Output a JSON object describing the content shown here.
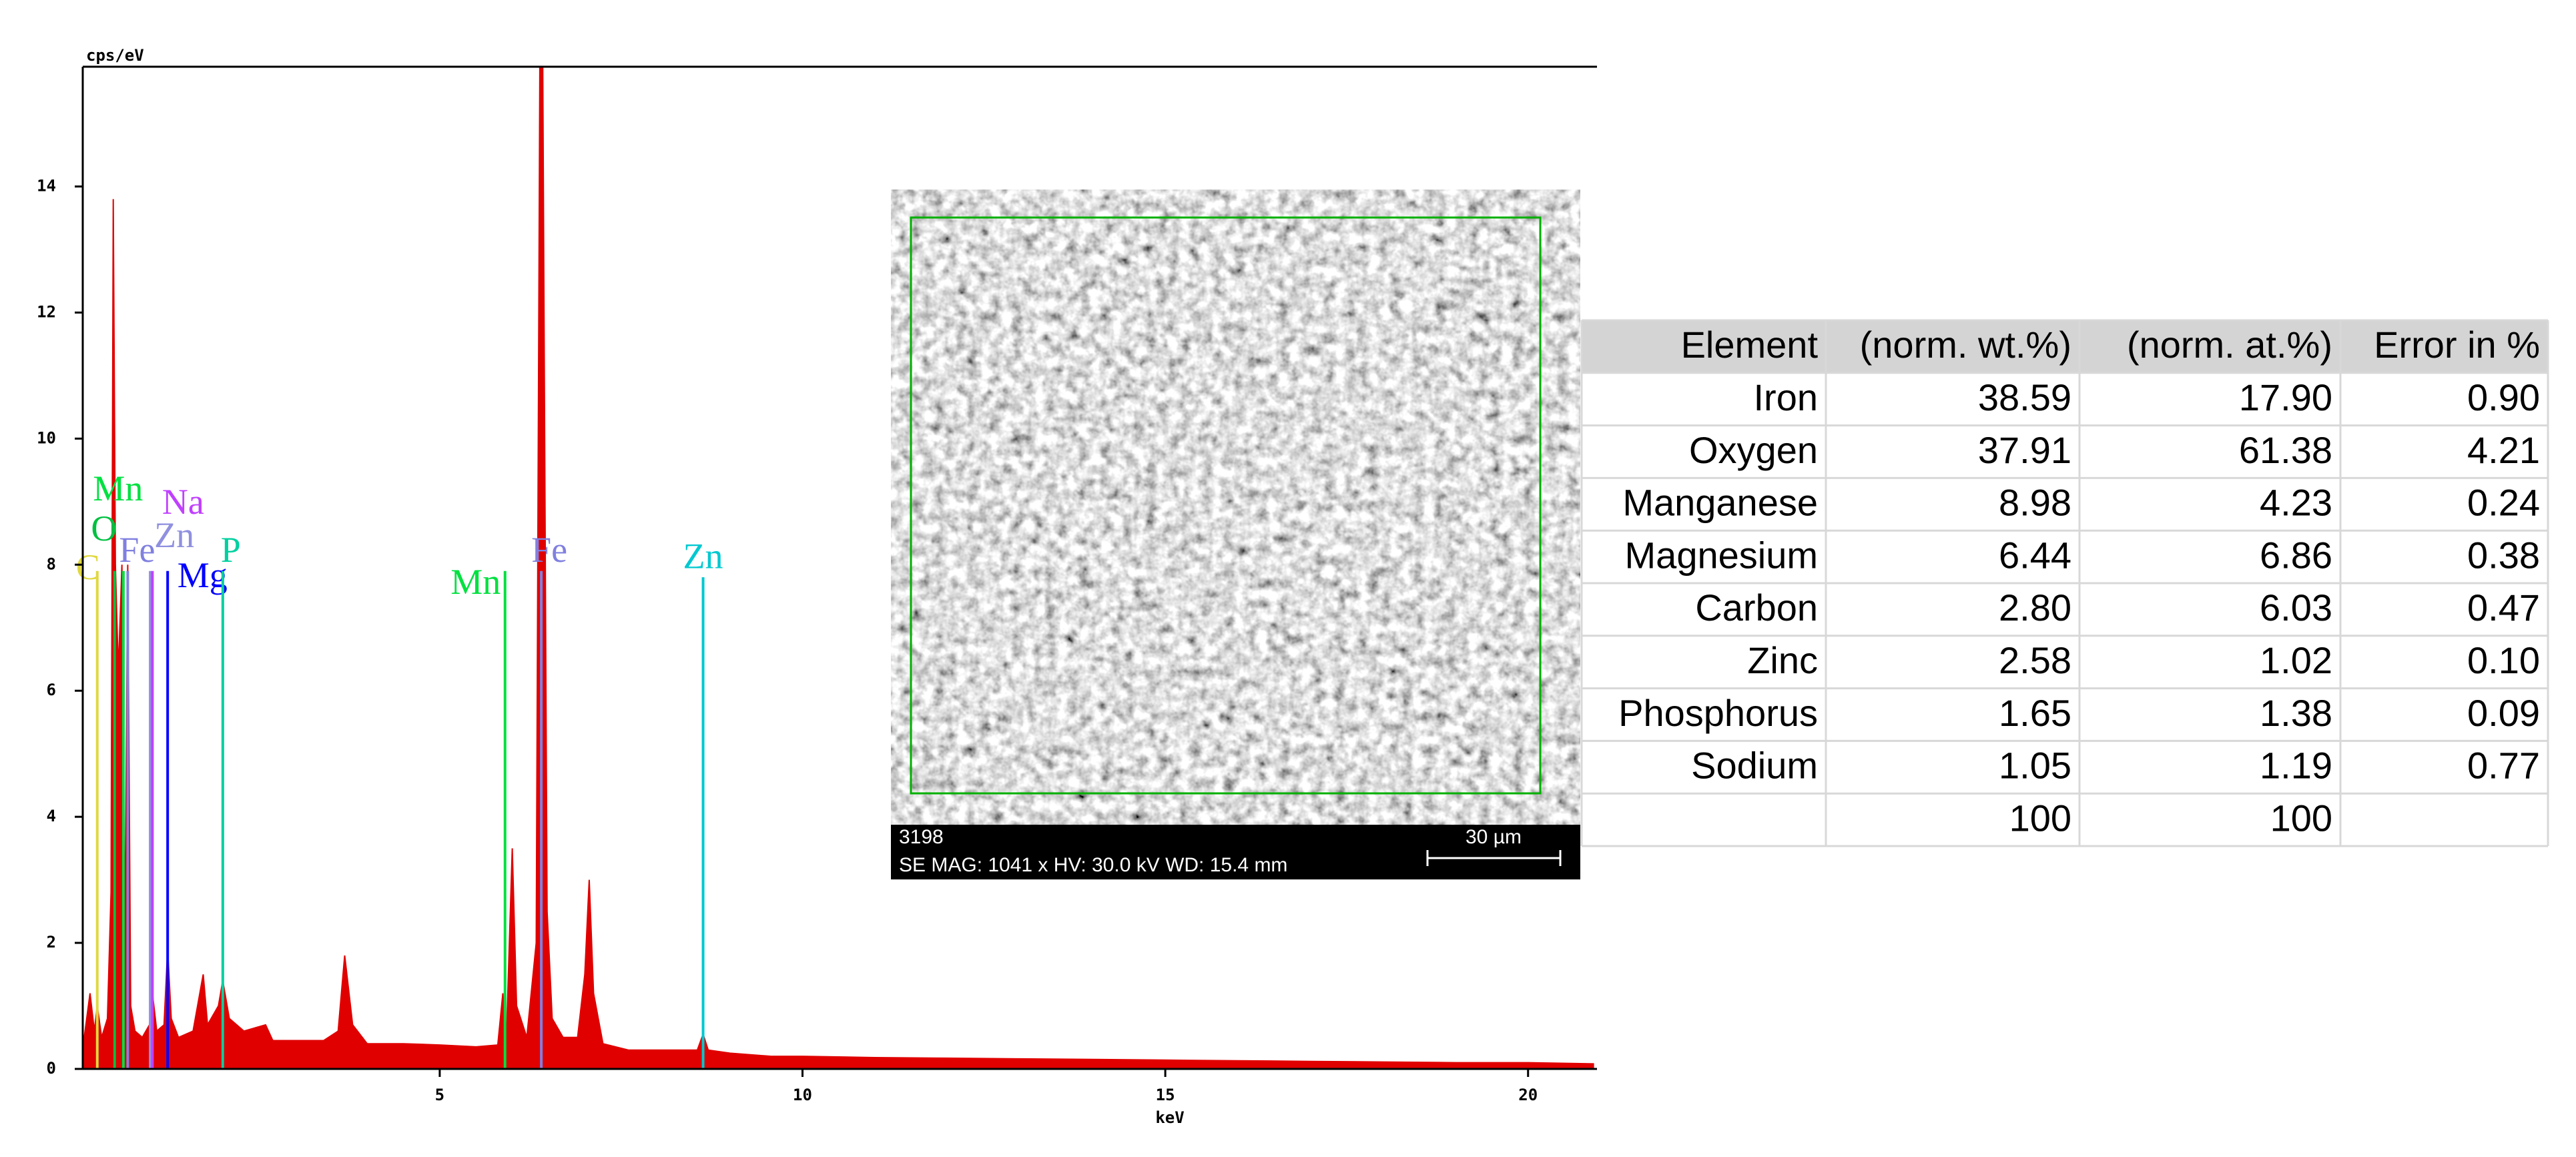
{
  "chart_data": {
    "type": "area",
    "y_label": "cps/eV",
    "x_label": "keV",
    "color": "#e00000",
    "xlim": [
      0.08,
      20.95
    ],
    "ylim": [
      0,
      15.9
    ],
    "xticks": [
      5,
      10,
      15,
      20
    ],
    "yticks": [
      0,
      2,
      4,
      6,
      8,
      10,
      12,
      14
    ],
    "x": [
      0.1,
      0.18,
      0.24,
      0.28,
      0.34,
      0.42,
      0.47,
      0.5,
      0.53,
      0.57,
      0.62,
      0.66,
      0.7,
      0.74,
      0.8,
      0.9,
      1.0,
      1.04,
      1.1,
      1.2,
      1.25,
      1.3,
      1.4,
      1.6,
      1.74,
      1.8,
      1.95,
      2.01,
      2.1,
      2.3,
      2.6,
      2.7,
      3.0,
      3.4,
      3.6,
      3.69,
      3.8,
      4.0,
      4.5,
      5.0,
      5.5,
      5.8,
      5.87,
      5.92,
      6.0,
      6.06,
      6.2,
      6.33,
      6.38,
      6.42,
      6.48,
      6.55,
      6.7,
      6.9,
      7.0,
      7.06,
      7.12,
      7.25,
      7.6,
      8.0,
      8.55,
      8.63,
      8.7,
      9.0,
      9.57,
      10,
      11,
      12,
      13,
      14,
      15,
      16,
      17,
      18,
      19,
      20,
      20.9
    ],
    "values": [
      0.5,
      1.2,
      0.6,
      1.0,
      0.5,
      0.8,
      2.8,
      13.8,
      8.0,
      6.3,
      8.0,
      2.0,
      8.0,
      1.0,
      0.6,
      0.5,
      0.7,
      1.2,
      0.6,
      0.7,
      1.9,
      0.8,
      0.5,
      0.6,
      1.5,
      0.7,
      1.0,
      1.4,
      0.8,
      0.6,
      0.7,
      0.45,
      0.45,
      0.45,
      0.6,
      1.8,
      0.7,
      0.4,
      0.4,
      0.38,
      0.35,
      0.38,
      1.2,
      0.5,
      3.5,
      1.0,
      0.5,
      2.0,
      15.9,
      15.9,
      2.5,
      0.8,
      0.5,
      0.5,
      1.5,
      3.0,
      1.2,
      0.4,
      0.3,
      0.3,
      0.3,
      0.55,
      0.3,
      0.25,
      0.2,
      0.2,
      0.18,
      0.17,
      0.16,
      0.15,
      0.14,
      0.13,
      0.12,
      0.11,
      0.1,
      0.1,
      0.08
    ],
    "annotations": [
      {
        "label": "C",
        "x": 0.28,
        "y": 7.9,
        "color": "#e0d840"
      },
      {
        "label": "Mn",
        "x": 0.64,
        "y": 7.9,
        "color": "#00e040"
      },
      {
        "label": "O",
        "x": 0.52,
        "y": 7.9,
        "color": "#00c040"
      },
      {
        "label": "Fe",
        "x": 0.7,
        "y": 7.9,
        "color": "#8080e0"
      },
      {
        "label": "Zn",
        "x": 1.01,
        "y": 7.9,
        "color": "#9090e0"
      },
      {
        "label": "Na",
        "x": 1.04,
        "y": 7.9,
        "color": "#c040ff"
      },
      {
        "label": "Mg",
        "x": 1.25,
        "y": 7.9,
        "color": "#0000ff"
      },
      {
        "label": "P",
        "x": 2.01,
        "y": 7.9,
        "color": "#00d0a0"
      },
      {
        "label": "Mn",
        "x": 5.9,
        "y": 7.9,
        "color": "#00e040"
      },
      {
        "label": "Fe",
        "x": 6.4,
        "y": 7.9,
        "color": "#8080e0"
      },
      {
        "label": "Zn",
        "x": 8.63,
        "y": 7.8,
        "color": "#00c8d0"
      }
    ]
  },
  "sem_image": {
    "id": "3198",
    "info": "SE  MAG: 1041 x  HV: 30.0 kV  WD: 15.4 mm",
    "scale": "30 µm"
  },
  "table": {
    "header": [
      "Element",
      "(norm. wt.%)",
      "(norm. at.%)",
      "Error in %"
    ],
    "rows": [
      [
        "Iron",
        "38.59",
        "17.90",
        "0.90"
      ],
      [
        "Oxygen",
        "37.91",
        "61.38",
        "4.21"
      ],
      [
        "Manganese",
        "8.98",
        "4.23",
        "0.24"
      ],
      [
        "Magnesium",
        "6.44",
        "6.86",
        "0.38"
      ],
      [
        "Carbon",
        "2.80",
        "6.03",
        "0.47"
      ],
      [
        "Zinc",
        "2.58",
        "1.02",
        "0.10"
      ],
      [
        "Phosphorus",
        "1.65",
        "1.38",
        "0.09"
      ],
      [
        "Sodium",
        "1.05",
        "1.19",
        "0.77"
      ],
      [
        null,
        "100",
        "100",
        null
      ]
    ]
  }
}
